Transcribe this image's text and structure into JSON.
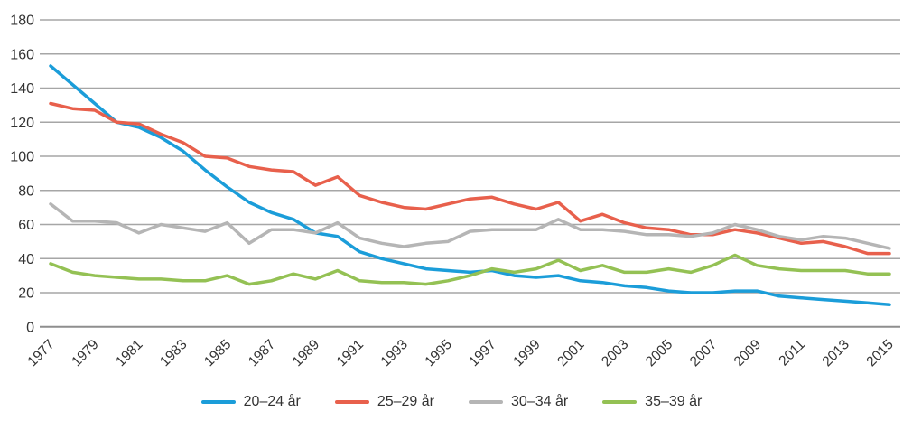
{
  "chart_data": {
    "type": "line",
    "title": "",
    "xlabel": "",
    "ylabel": "",
    "ylim": [
      0,
      180
    ],
    "grid": true,
    "legend_position": "bottom",
    "y_ticks": [
      0,
      20,
      40,
      60,
      80,
      100,
      120,
      140,
      160,
      180
    ],
    "x_tick_labels": [
      "1977",
      "1979",
      "1981",
      "1983",
      "1985",
      "1987",
      "1989",
      "1991",
      "1993",
      "1995",
      "1997",
      "1999",
      "2001",
      "2003",
      "2005",
      "2007",
      "2009",
      "2011",
      "2013",
      "2015"
    ],
    "x": [
      1977,
      1978,
      1979,
      1980,
      1981,
      1982,
      1983,
      1984,
      1985,
      1986,
      1987,
      1988,
      1989,
      1990,
      1991,
      1992,
      1993,
      1994,
      1995,
      1996,
      1997,
      1998,
      1999,
      2000,
      2001,
      2002,
      2003,
      2004,
      2005,
      2006,
      2007,
      2008,
      2009,
      2010,
      2011,
      2012,
      2013,
      2014,
      2015
    ],
    "series": [
      {
        "name": "20–24 år",
        "color": "#1B9DD9",
        "values": [
          153,
          142,
          131,
          120,
          117,
          111,
          103,
          92,
          82,
          73,
          67,
          63,
          55,
          53,
          44,
          40,
          37,
          34,
          33,
          32,
          33,
          30,
          29,
          30,
          27,
          26,
          24,
          23,
          21,
          20,
          20,
          21,
          21,
          18,
          17,
          16,
          15,
          14,
          13
        ]
      },
      {
        "name": "25–29 år",
        "color": "#E8604C",
        "values": [
          131,
          128,
          127,
          120,
          119,
          113,
          108,
          100,
          99,
          94,
          92,
          91,
          83,
          88,
          77,
          73,
          70,
          69,
          72,
          75,
          76,
          72,
          69,
          73,
          62,
          66,
          61,
          58,
          57,
          54,
          54,
          57,
          55,
          52,
          49,
          50,
          47,
          43,
          43
        ]
      },
      {
        "name": "30–34 år",
        "color": "#B5B5B5",
        "values": [
          72,
          62,
          62,
          61,
          55,
          60,
          58,
          56,
          61,
          49,
          57,
          57,
          55,
          61,
          52,
          49,
          47,
          49,
          50,
          56,
          57,
          57,
          57,
          63,
          57,
          57,
          56,
          54,
          54,
          53,
          55,
          60,
          57,
          53,
          51,
          53,
          52,
          49,
          46
        ]
      },
      {
        "name": "35–39 år",
        "color": "#94C154",
        "values": [
          37,
          32,
          30,
          29,
          28,
          28,
          27,
          27,
          30,
          25,
          27,
          31,
          28,
          33,
          27,
          26,
          26,
          25,
          27,
          30,
          34,
          32,
          34,
          39,
          33,
          36,
          32,
          32,
          34,
          32,
          36,
          42,
          36,
          34,
          33,
          33,
          33,
          31,
          31
        ]
      }
    ],
    "style": {
      "gridline_color": "#A6A6A6",
      "baseline_color": "#8E8E8E",
      "tick_label_color": "#333333",
      "line_width": 3.5
    }
  }
}
